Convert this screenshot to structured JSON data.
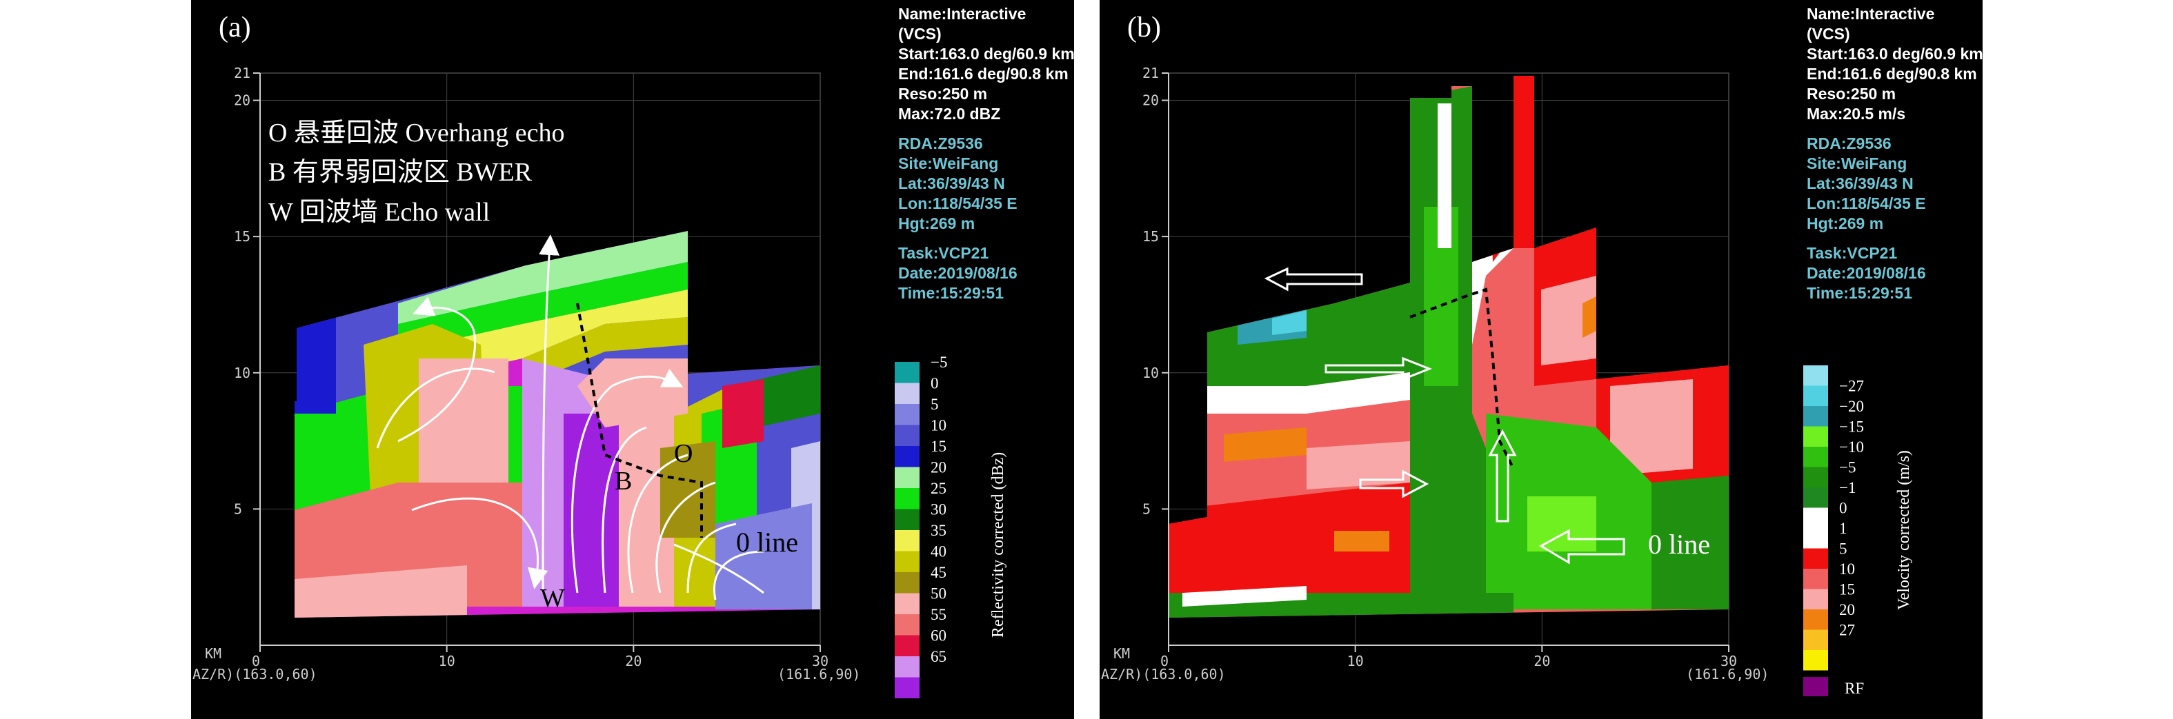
{
  "chart_data": [
    {
      "type": "heatmap",
      "panel_label": "(a)",
      "product": "Reflectivity corrected (dBz)",
      "xlim": [
        0,
        30
      ],
      "ylim": [
        0,
        21
      ],
      "x_ticks": [
        "0",
        "10",
        "20",
        "30"
      ],
      "y_ticks": [
        "5",
        "10",
        "15",
        "20",
        "21"
      ],
      "xlabel": "KM",
      "az_start": "AZ/R)(163.0,60)",
      "az_end": "(161.6,90)",
      "info": {
        "name": "Name:Interactive",
        "vcs": "(VCS)",
        "start": "Start:163.0 deg/60.9 km",
        "end": "End:161.6 deg/90.8 km",
        "reso": "Reso:250 m",
        "max": "Max:72.0 dBZ",
        "rda": "RDA:Z9536",
        "site": "Site:WeiFang",
        "lat": "Lat:36/39/43 N",
        "lon": "Lon:118/54/35 E",
        "hgt": "Hgt:269 m",
        "task": "Task:VCP21",
        "date": "Date:2019/08/16",
        "time": "Time:15:29:51"
      },
      "legend": [
        {
          "label": "−5",
          "color": "#10a0a0"
        },
        {
          "label": "0",
          "color": "#c8c8f0"
        },
        {
          "label": "5",
          "color": "#8080e0"
        },
        {
          "label": "10",
          "color": "#5050d0"
        },
        {
          "label": "15",
          "color": "#1a1ad0"
        },
        {
          "label": "20",
          "color": "#a0f0a0"
        },
        {
          "label": "25",
          "color": "#10e010"
        },
        {
          "label": "30",
          "color": "#108010"
        },
        {
          "label": "35",
          "color": "#f0f050"
        },
        {
          "label": "40",
          "color": "#c8c800"
        },
        {
          "label": "45",
          "color": "#a09010"
        },
        {
          "label": "50",
          "color": "#f8b0b0"
        },
        {
          "label": "55",
          "color": "#f07070"
        },
        {
          "label": "60",
          "color": "#e01040"
        },
        {
          "label": "65",
          "color": "#d090f0"
        },
        {
          "label": "",
          "color": "#a020e0"
        }
      ],
      "annotations": {
        "line1": "O  悬垂回波 Overhang echo",
        "line2": "B  有界弱回波区 BWER",
        "line3": "W  回波墙 Echo wall",
        "O": "O",
        "B": "B",
        "W": "W",
        "zero_line": "0 line"
      }
    },
    {
      "type": "heatmap",
      "panel_label": "(b)",
      "product": "Velocity corrected (m/s)",
      "xlim": [
        0,
        30
      ],
      "ylim": [
        0,
        21
      ],
      "x_ticks": [
        "0",
        "10",
        "20",
        "30"
      ],
      "y_ticks": [
        "5",
        "10",
        "15",
        "20",
        "21"
      ],
      "xlabel": "KM",
      "az_start": "AZ/R)(163.0,60)",
      "az_end": "(161.6,90)",
      "info": {
        "name": "Name:Interactive",
        "vcs": "(VCS)",
        "start": "Start:163.0 deg/60.9 km",
        "end": "End:161.6 deg/90.8 km",
        "reso": "Reso:250 m",
        "max": "Max:20.5 m/s",
        "rda": "RDA:Z9536",
        "site": "Site:WeiFang",
        "lat": "Lat:36/39/43 N",
        "lon": "Lon:118/54/35 E",
        "hgt": "Hgt:269 m",
        "task": "Task:VCP21",
        "date": "Date:2019/08/16",
        "time": "Time:15:29:51"
      },
      "legend": [
        {
          "label": "",
          "color": "#90e0f0"
        },
        {
          "label": "−27",
          "color": "#50d0e0"
        },
        {
          "label": "−20",
          "color": "#30a0b0"
        },
        {
          "label": "−15",
          "color": "#70f020"
        },
        {
          "label": "−10",
          "color": "#30c010"
        },
        {
          "label": "−5",
          "color": "#209010"
        },
        {
          "label": "−1",
          "color": "#208820"
        },
        {
          "label": "0",
          "color": "#ffffff"
        },
        {
          "label": "1",
          "color": "#ffffff"
        },
        {
          "label": "5",
          "color": "#f01010"
        },
        {
          "label": "10",
          "color": "#f06060"
        },
        {
          "label": "15",
          "color": "#f8a8a8"
        },
        {
          "label": "20",
          "color": "#f08010"
        },
        {
          "label": "27",
          "color": "#f8c020"
        },
        {
          "label": "",
          "color": "#f8f000"
        }
      ],
      "rf_label": "RF",
      "rf_color": "#800080",
      "annotations": {
        "zero_line": "0 line"
      }
    }
  ]
}
